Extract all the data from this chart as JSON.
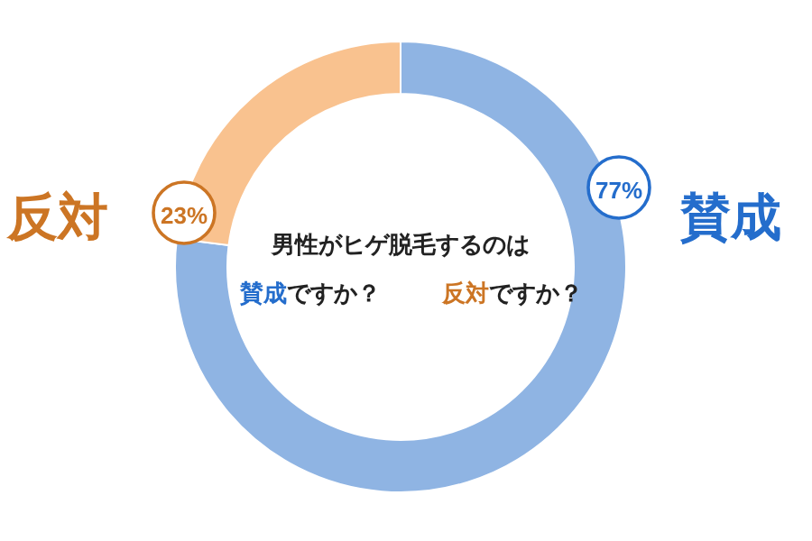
{
  "chart_data": {
    "type": "donut",
    "categories": [
      "賛成",
      "反対"
    ],
    "values": [
      77,
      23
    ],
    "value_labels": [
      "77%",
      "23%"
    ],
    "colors": [
      "#8fb4e3",
      "#f9c28f"
    ],
    "annotations": [
      "男性がヒゲ脱毛するのは",
      "賛成ですか？",
      "反対ですか？"
    ]
  }
}
